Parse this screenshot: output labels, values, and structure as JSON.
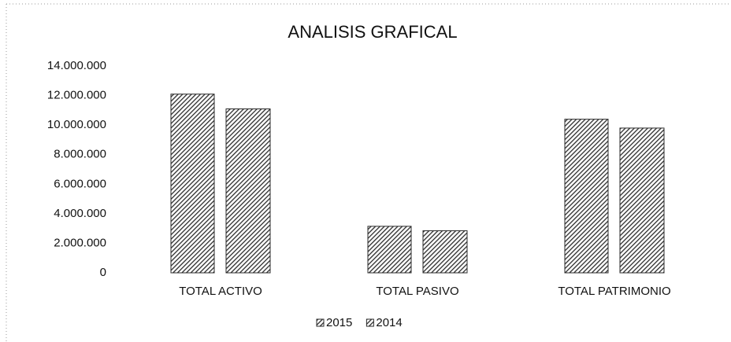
{
  "chart_data": {
    "type": "bar",
    "title": "ANALISIS GRAFICAL",
    "categories": [
      "TOTAL ACTIVO",
      "TOTAL PASIVO",
      "TOTAL PATRIMONIO"
    ],
    "series": [
      {
        "name": "2015",
        "color": "#2b2b2b",
        "values": [
          12100000,
          3150000,
          10400000
        ]
      },
      {
        "name": "2014",
        "color": "#2b2b2b",
        "values": [
          11100000,
          2850000,
          9800000
        ]
      }
    ],
    "ylim": [
      0,
      14000000
    ],
    "yticks": [
      0,
      {
        "value": 2000000,
        "label": "2.000.000"
      },
      {
        "value": 4000000,
        "label": "4.000.000"
      },
      {
        "value": 6000000,
        "label": "6.000.000"
      },
      {
        "value": 8000000,
        "label": "8.000.000"
      },
      {
        "value": 10000000,
        "label": "10.000.000"
      },
      {
        "value": 12000000,
        "label": "12.000.000"
      },
      {
        "value": 14000000,
        "label": "14.000.000"
      }
    ],
    "grid": false,
    "legend": "bottom"
  }
}
